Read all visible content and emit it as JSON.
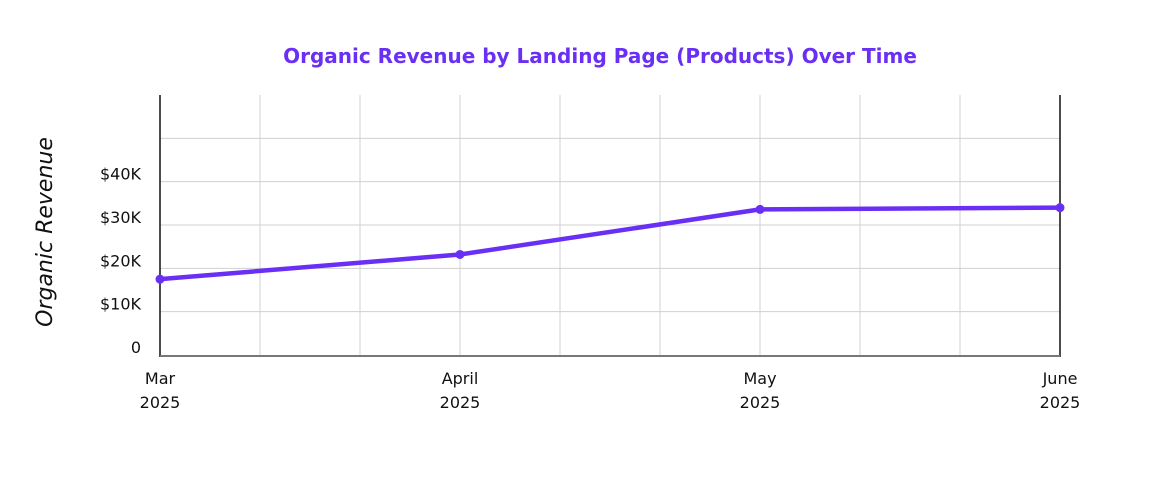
{
  "chart_data": {
    "type": "line",
    "title": "Organic Revenue by Landing Page (Products) Over Time",
    "xlabel": "",
    "ylabel": "Organic Revenue",
    "categories": [
      [
        "Mar",
        "2025"
      ],
      [
        "April",
        "2025"
      ],
      [
        "May",
        "2025"
      ],
      [
        "June",
        "2025"
      ]
    ],
    "series": [
      {
        "values": [
          17500,
          23200,
          33600,
          34000
        ]
      }
    ],
    "yticks": [
      0,
      10000,
      20000,
      30000,
      40000,
      50000
    ],
    "ytick_labels": [
      "0",
      "$10K",
      "$20K",
      "$30K",
      "$40K",
      ""
    ],
    "ylim": [
      0,
      60000
    ],
    "grid": true,
    "colors": {
      "line": "#6a2ff4",
      "title": "#6a2ff4",
      "grid": "#d0d0d0"
    }
  }
}
